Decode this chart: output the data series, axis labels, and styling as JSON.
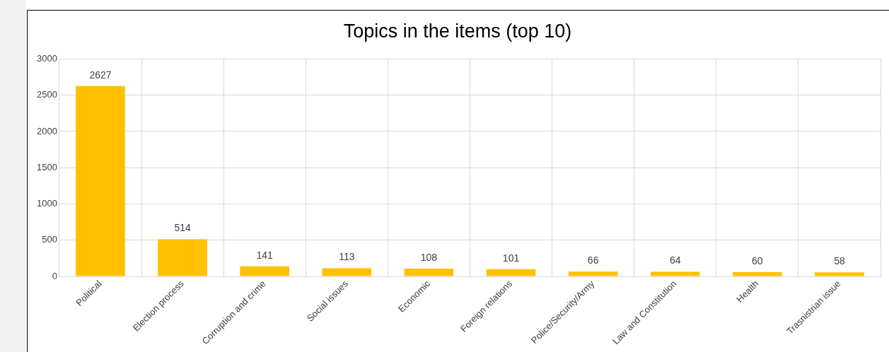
{
  "chart_data": {
    "type": "bar",
    "title": "Topics in the items (top 10)",
    "categories": [
      "Political",
      "Election process",
      "Corruption and crime",
      "Social issues",
      "Economic",
      "Foreign relations",
      "Police/Security/Army",
      "Law and Constitution",
      "Health",
      "Trasnistrian issue"
    ],
    "values": [
      2627,
      514,
      141,
      113,
      108,
      101,
      66,
      64,
      60,
      58
    ],
    "color": "#ffc000",
    "ylim": [
      0,
      3000
    ],
    "yticks": [
      0,
      500,
      1000,
      1500,
      2000,
      2500,
      3000
    ],
    "grid": true,
    "legend": false,
    "data_labels": true
  }
}
